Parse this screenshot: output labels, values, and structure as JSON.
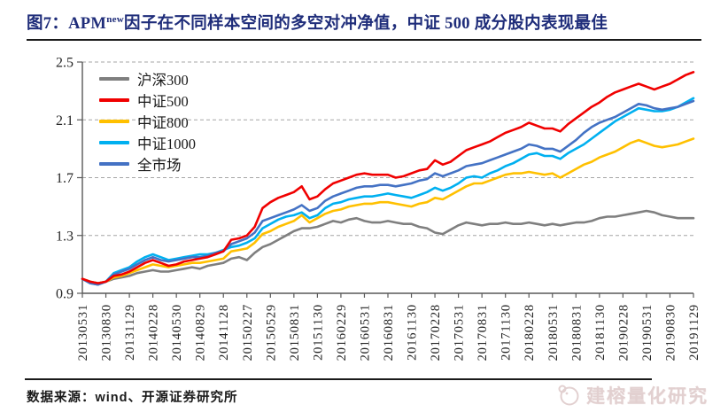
{
  "figure": {
    "title_prefix": "图7：APM",
    "title_sup": "new",
    "title_suffix": "因子在不同样本空间的多空对冲净值，中证 500 成分股内表现最佳",
    "source_note": "数据来源：wind、开源证券研究所",
    "watermark_text": "建榕量化研究"
  },
  "colors": {
    "title_text": "#1f2d7a",
    "axis_text": "#262626",
    "grid_line": "#a6a6a6",
    "axis_line": "#595959",
    "watermark": "#ddc8c8"
  },
  "chart_data": {
    "type": "line",
    "title": "APM new 因子在不同样本空间的多空对冲净值",
    "xlabel": "",
    "ylabel": "",
    "ylim": [
      0.9,
      2.5
    ],
    "yticks": [
      0.9,
      1.3,
      1.7,
      2.1,
      2.5
    ],
    "grid": "horizontal-dashed",
    "legend_position": "top-left-inside",
    "x_unit": "month",
    "x_start": "2013-05",
    "x_end": "2019-11",
    "months_per_tick": 3,
    "x_tick_labels": [
      "20130531",
      "20130830",
      "20131129",
      "20140228",
      "20140530",
      "20140829",
      "20141128",
      "20150227",
      "20150529",
      "20150831",
      "20151130",
      "20160229",
      "20160531",
      "20160831",
      "20161130",
      "20170228",
      "20170531",
      "20170831",
      "20171130",
      "20180228",
      "20180531",
      "20180831",
      "20181130",
      "20190228",
      "20190531",
      "20190830",
      "20191129"
    ],
    "series": [
      {
        "name": "沪深300",
        "color": "#7f7f7f",
        "values": [
          1.0,
          0.98,
          0.97,
          0.98,
          1.0,
          1.01,
          1.02,
          1.04,
          1.05,
          1.06,
          1.05,
          1.05,
          1.06,
          1.07,
          1.08,
          1.07,
          1.09,
          1.1,
          1.11,
          1.14,
          1.15,
          1.13,
          1.18,
          1.22,
          1.24,
          1.27,
          1.3,
          1.33,
          1.35,
          1.35,
          1.36,
          1.38,
          1.4,
          1.39,
          1.41,
          1.42,
          1.4,
          1.39,
          1.39,
          1.4,
          1.39,
          1.38,
          1.38,
          1.36,
          1.35,
          1.32,
          1.31,
          1.34,
          1.37,
          1.39,
          1.38,
          1.37,
          1.38,
          1.38,
          1.39,
          1.38,
          1.38,
          1.39,
          1.38,
          1.37,
          1.38,
          1.37,
          1.38,
          1.39,
          1.39,
          1.4,
          1.42,
          1.43,
          1.43,
          1.44,
          1.45,
          1.46,
          1.47,
          1.46,
          1.44,
          1.43,
          1.42,
          1.42,
          1.42
        ]
      },
      {
        "name": "中证500",
        "color": "#f00000",
        "values": [
          1.0,
          0.98,
          0.97,
          0.98,
          1.02,
          1.03,
          1.05,
          1.08,
          1.11,
          1.13,
          1.11,
          1.09,
          1.1,
          1.12,
          1.13,
          1.14,
          1.15,
          1.17,
          1.19,
          1.27,
          1.28,
          1.3,
          1.36,
          1.49,
          1.53,
          1.56,
          1.58,
          1.6,
          1.64,
          1.55,
          1.57,
          1.62,
          1.66,
          1.68,
          1.7,
          1.72,
          1.73,
          1.72,
          1.72,
          1.72,
          1.7,
          1.71,
          1.73,
          1.75,
          1.76,
          1.82,
          1.79,
          1.81,
          1.85,
          1.89,
          1.91,
          1.93,
          1.95,
          1.98,
          2.01,
          2.03,
          2.05,
          2.08,
          2.06,
          2.04,
          2.04,
          2.02,
          2.07,
          2.11,
          2.15,
          2.19,
          2.22,
          2.26,
          2.29,
          2.31,
          2.33,
          2.35,
          2.33,
          2.31,
          2.33,
          2.35,
          2.38,
          2.41,
          2.43
        ]
      },
      {
        "name": "中证800",
        "color": "#ffc000",
        "values": [
          1.0,
          0.98,
          0.97,
          0.98,
          1.01,
          1.02,
          1.04,
          1.06,
          1.08,
          1.1,
          1.09,
          1.08,
          1.09,
          1.1,
          1.11,
          1.11,
          1.12,
          1.13,
          1.14,
          1.19,
          1.2,
          1.21,
          1.25,
          1.31,
          1.33,
          1.36,
          1.38,
          1.4,
          1.44,
          1.39,
          1.42,
          1.45,
          1.47,
          1.48,
          1.5,
          1.51,
          1.52,
          1.52,
          1.53,
          1.53,
          1.52,
          1.51,
          1.5,
          1.52,
          1.53,
          1.56,
          1.55,
          1.58,
          1.61,
          1.64,
          1.66,
          1.66,
          1.68,
          1.7,
          1.72,
          1.73,
          1.73,
          1.74,
          1.73,
          1.72,
          1.73,
          1.7,
          1.73,
          1.76,
          1.79,
          1.81,
          1.84,
          1.86,
          1.88,
          1.91,
          1.94,
          1.96,
          1.94,
          1.92,
          1.91,
          1.92,
          1.93,
          1.95,
          1.97
        ]
      },
      {
        "name": "中证1000",
        "color": "#00b0f0",
        "values": [
          1.0,
          0.97,
          0.96,
          0.98,
          1.04,
          1.06,
          1.08,
          1.12,
          1.15,
          1.17,
          1.15,
          1.13,
          1.14,
          1.15,
          1.16,
          1.17,
          1.17,
          1.18,
          1.2,
          1.22,
          1.23,
          1.25,
          1.28,
          1.35,
          1.38,
          1.41,
          1.43,
          1.44,
          1.46,
          1.42,
          1.44,
          1.49,
          1.52,
          1.53,
          1.55,
          1.56,
          1.57,
          1.57,
          1.58,
          1.59,
          1.58,
          1.57,
          1.56,
          1.58,
          1.6,
          1.63,
          1.61,
          1.63,
          1.66,
          1.7,
          1.71,
          1.7,
          1.73,
          1.75,
          1.78,
          1.8,
          1.83,
          1.86,
          1.87,
          1.85,
          1.85,
          1.83,
          1.87,
          1.9,
          1.93,
          1.97,
          2.01,
          2.05,
          2.09,
          2.12,
          2.15,
          2.18,
          2.17,
          2.16,
          2.16,
          2.17,
          2.19,
          2.22,
          2.25
        ]
      },
      {
        "name": "全市场",
        "color": "#4472c4",
        "values": [
          1.0,
          0.97,
          0.96,
          0.98,
          1.03,
          1.05,
          1.07,
          1.1,
          1.13,
          1.15,
          1.13,
          1.12,
          1.13,
          1.14,
          1.15,
          1.15,
          1.16,
          1.18,
          1.19,
          1.24,
          1.26,
          1.28,
          1.32,
          1.4,
          1.42,
          1.44,
          1.46,
          1.48,
          1.51,
          1.47,
          1.49,
          1.54,
          1.57,
          1.59,
          1.61,
          1.63,
          1.64,
          1.64,
          1.65,
          1.65,
          1.64,
          1.65,
          1.66,
          1.68,
          1.69,
          1.73,
          1.71,
          1.73,
          1.75,
          1.78,
          1.79,
          1.8,
          1.82,
          1.84,
          1.86,
          1.88,
          1.9,
          1.93,
          1.92,
          1.9,
          1.9,
          1.88,
          1.92,
          1.96,
          2.01,
          2.05,
          2.08,
          2.1,
          2.12,
          2.15,
          2.18,
          2.21,
          2.2,
          2.18,
          2.17,
          2.18,
          2.19,
          2.21,
          2.23
        ]
      }
    ]
  }
}
